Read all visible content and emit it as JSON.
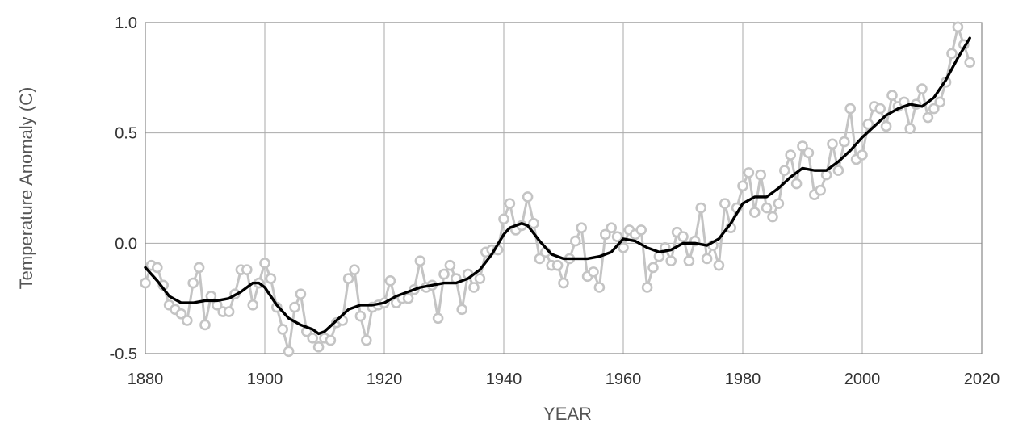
{
  "chart_data": {
    "type": "line",
    "xlabel": "YEAR",
    "ylabel": "Temperature Anomaly (C)",
    "xlim": [
      1880,
      2020
    ],
    "ylim": [
      -0.5,
      1.0
    ],
    "x_ticks": [
      "1880",
      "1900",
      "1920",
      "1940",
      "1960",
      "1980",
      "2000",
      "2020"
    ],
    "y_ticks": [
      "1.0",
      "0.5",
      "0.0",
      "-0.5"
    ],
    "grid": true,
    "legend": "none",
    "colors": {
      "annual": "#c4c4c4",
      "smoothed": "#000000",
      "grid": "#aaaaaa",
      "frame": "#888888"
    },
    "series": [
      {
        "style": "annual",
        "x": [
          1880,
          1881,
          1882,
          1883,
          1884,
          1885,
          1886,
          1887,
          1888,
          1889,
          1890,
          1891,
          1892,
          1893,
          1894,
          1895,
          1896,
          1897,
          1898,
          1899,
          1900,
          1901,
          1902,
          1903,
          1904,
          1905,
          1906,
          1907,
          1908,
          1909,
          1910,
          1911,
          1912,
          1913,
          1914,
          1915,
          1916,
          1917,
          1918,
          1919,
          1920,
          1921,
          1922,
          1923,
          1924,
          1925,
          1926,
          1927,
          1928,
          1929,
          1930,
          1931,
          1932,
          1933,
          1934,
          1935,
          1936,
          1937,
          1938,
          1939,
          1940,
          1941,
          1942,
          1943,
          1944,
          1945,
          1946,
          1947,
          1948,
          1949,
          1950,
          1951,
          1952,
          1953,
          1954,
          1955,
          1956,
          1957,
          1958,
          1959,
          1960,
          1961,
          1962,
          1963,
          1964,
          1965,
          1966,
          1967,
          1968,
          1969,
          1970,
          1971,
          1972,
          1973,
          1974,
          1975,
          1976,
          1977,
          1978,
          1979,
          1980,
          1981,
          1982,
          1983,
          1984,
          1985,
          1986,
          1987,
          1988,
          1989,
          1990,
          1991,
          1992,
          1993,
          1994,
          1995,
          1996,
          1997,
          1998,
          1999,
          2000,
          2001,
          2002,
          2003,
          2004,
          2005,
          2006,
          2007,
          2008,
          2009,
          2010,
          2011,
          2012,
          2013,
          2014,
          2015,
          2016,
          2017,
          2018
        ],
        "y": [
          -0.18,
          -0.1,
          -0.11,
          -0.19,
          -0.28,
          -0.3,
          -0.32,
          -0.35,
          -0.18,
          -0.11,
          -0.37,
          -0.24,
          -0.28,
          -0.31,
          -0.31,
          -0.23,
          -0.12,
          -0.12,
          -0.28,
          -0.18,
          -0.09,
          -0.16,
          -0.29,
          -0.39,
          -0.49,
          -0.29,
          -0.23,
          -0.4,
          -0.43,
          -0.47,
          -0.43,
          -0.44,
          -0.36,
          -0.35,
          -0.16,
          -0.12,
          -0.33,
          -0.44,
          -0.29,
          -0.28,
          -0.27,
          -0.17,
          -0.27,
          -0.25,
          -0.25,
          -0.21,
          -0.08,
          -0.2,
          -0.19,
          -0.34,
          -0.14,
          -0.1,
          -0.16,
          -0.3,
          -0.14,
          -0.2,
          -0.16,
          -0.04,
          -0.03,
          -0.03,
          0.11,
          0.18,
          0.06,
          0.08,
          0.21,
          0.09,
          -0.07,
          -0.04,
          -0.1,
          -0.1,
          -0.18,
          -0.07,
          0.01,
          0.07,
          -0.15,
          -0.13,
          -0.2,
          0.04,
          0.07,
          0.03,
          -0.02,
          0.06,
          0.04,
          0.06,
          -0.2,
          -0.11,
          -0.06,
          -0.02,
          -0.08,
          0.05,
          0.03,
          -0.08,
          0.01,
          0.16,
          -0.07,
          -0.01,
          -0.1,
          0.18,
          0.07,
          0.16,
          0.26,
          0.32,
          0.14,
          0.31,
          0.16,
          0.12,
          0.18,
          0.33,
          0.4,
          0.27,
          0.44,
          0.41,
          0.22,
          0.24,
          0.31,
          0.45,
          0.33,
          0.46,
          0.61,
          0.38,
          0.4,
          0.54,
          0.62,
          0.61,
          0.53,
          0.67,
          0.62,
          0.64,
          0.52,
          0.63,
          0.7,
          0.57,
          0.61,
          0.64,
          0.73,
          0.86,
          0.98,
          0.9,
          0.82
        ]
      },
      {
        "style": "smoothed",
        "x": [
          1880,
          1882,
          1884,
          1886,
          1888,
          1890,
          1892,
          1894,
          1896,
          1898,
          1899,
          1900,
          1902,
          1904,
          1906,
          1908,
          1909,
          1910,
          1912,
          1914,
          1916,
          1918,
          1920,
          1922,
          1924,
          1926,
          1928,
          1930,
          1932,
          1934,
          1936,
          1938,
          1940,
          1941,
          1942,
          1943,
          1944,
          1946,
          1948,
          1950,
          1952,
          1954,
          1956,
          1958,
          1960,
          1962,
          1964,
          1966,
          1968,
          1970,
          1972,
          1974,
          1976,
          1978,
          1980,
          1982,
          1984,
          1986,
          1988,
          1990,
          1992,
          1994,
          1996,
          1998,
          2000,
          2002,
          2004,
          2006,
          2008,
          2010,
          2012,
          2014,
          2016,
          2018
        ],
        "y": [
          -0.11,
          -0.17,
          -0.24,
          -0.27,
          -0.27,
          -0.26,
          -0.26,
          -0.25,
          -0.22,
          -0.18,
          -0.18,
          -0.2,
          -0.28,
          -0.34,
          -0.37,
          -0.39,
          -0.41,
          -0.4,
          -0.35,
          -0.3,
          -0.28,
          -0.28,
          -0.27,
          -0.24,
          -0.22,
          -0.2,
          -0.19,
          -0.18,
          -0.18,
          -0.16,
          -0.12,
          -0.05,
          0.04,
          0.07,
          0.08,
          0.09,
          0.08,
          0.01,
          -0.05,
          -0.07,
          -0.07,
          -0.07,
          -0.06,
          -0.04,
          0.02,
          0.01,
          -0.02,
          -0.04,
          -0.03,
          0.0,
          0.0,
          -0.01,
          0.02,
          0.09,
          0.18,
          0.21,
          0.21,
          0.25,
          0.3,
          0.34,
          0.33,
          0.33,
          0.37,
          0.42,
          0.48,
          0.53,
          0.58,
          0.61,
          0.63,
          0.62,
          0.66,
          0.74,
          0.84,
          0.93
        ]
      }
    ]
  }
}
